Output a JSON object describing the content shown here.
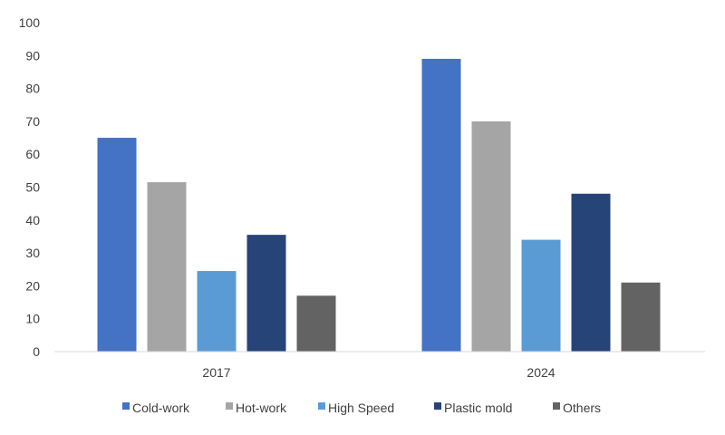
{
  "chart_data": {
    "type": "bar",
    "title": "",
    "xlabel": "",
    "ylabel": "",
    "categories": [
      "2017",
      "2024"
    ],
    "ylim": [
      0,
      100
    ],
    "yticks": [
      0,
      10,
      20,
      30,
      40,
      50,
      60,
      70,
      80,
      90,
      100
    ],
    "grid": false,
    "legend_position": "bottom",
    "series": [
      {
        "name": "Cold-work",
        "color": "#4472c4",
        "values": [
          65,
          89
        ]
      },
      {
        "name": "Hot-work",
        "color": "#a5a5a5",
        "values": [
          51.5,
          70
        ]
      },
      {
        "name": "High Speed",
        "color": "#5b9bd5",
        "values": [
          24.5,
          34
        ]
      },
      {
        "name": "Plastic mold",
        "color": "#264478",
        "values": [
          35.5,
          48
        ]
      },
      {
        "name": "Others",
        "color": "#636363",
        "values": [
          17,
          21
        ]
      }
    ]
  }
}
